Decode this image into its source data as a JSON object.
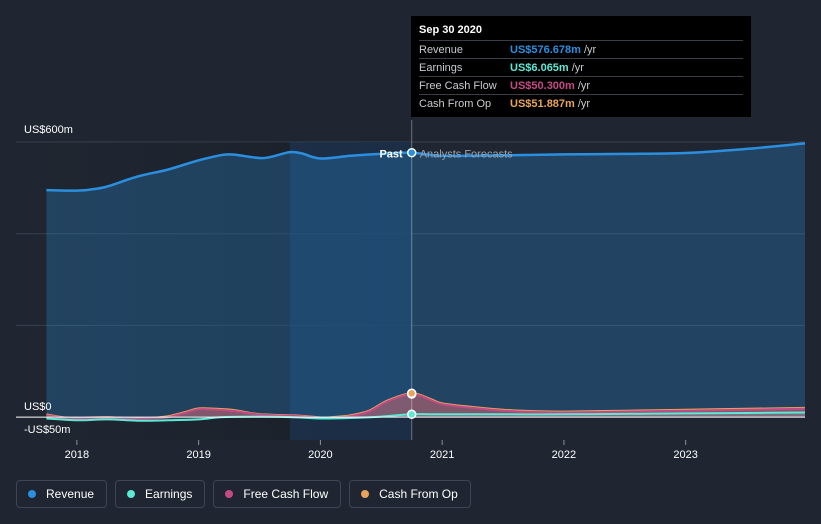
{
  "chart_data": {
    "type": "area",
    "y_axis": {
      "labels": [
        "US$600m",
        "US$0",
        "-US$50m"
      ],
      "ylim": [
        -50,
        600
      ]
    },
    "x_axis": {
      "tick_labels": [
        "2018",
        "2019",
        "2020",
        "2021",
        "2022",
        "2023"
      ],
      "xlim": [
        2017.5,
        2023.98
      ]
    },
    "past_label": "Past",
    "forecast_label": "Analysts Forecasts",
    "divider_x": 2020.75,
    "series": [
      {
        "name": "Revenue",
        "color": "#2b8fe0",
        "x": [
          2017.75,
          2017.9,
          2018.0,
          2018.1,
          2018.25,
          2018.5,
          2018.75,
          2019.0,
          2019.2,
          2019.3,
          2019.5,
          2019.6,
          2019.75,
          2019.85,
          2020.0,
          2020.25,
          2020.5,
          2020.75,
          2021.0,
          2021.5,
          2022.0,
          2022.5,
          2023.0,
          2023.5,
          2023.98
        ],
        "values": [
          495,
          494,
          494,
          496,
          503,
          525,
          540,
          560,
          572,
          572,
          565,
          568,
          578,
          575,
          564,
          570,
          574,
          576.678,
          570,
          571,
          573,
          574,
          576,
          585,
          597
        ]
      },
      {
        "name": "Earnings",
        "color": "#5ee8d6",
        "x": [
          2017.75,
          2018.0,
          2018.25,
          2018.5,
          2018.75,
          2019.0,
          2019.2,
          2019.5,
          2019.75,
          2020.0,
          2020.25,
          2020.5,
          2020.75,
          2021.0,
          2021.5,
          2022.0,
          2022.5,
          2023.0,
          2023.5,
          2023.98
        ],
        "values": [
          -3,
          -7,
          -5,
          -8,
          -7,
          -5,
          0,
          1,
          0,
          -3,
          -2,
          1,
          6.065,
          6,
          6,
          6,
          7,
          8,
          9,
          10
        ]
      },
      {
        "name": "Free Cash Flow",
        "color": "#c44a86",
        "x": [
          2017.75,
          2017.9,
          2018.0,
          2018.1,
          2018.25,
          2018.4,
          2018.5,
          2018.6,
          2018.75,
          2018.9,
          2019.0,
          2019.15,
          2019.3,
          2019.45,
          2019.6,
          2019.75,
          2019.9,
          2020.0,
          2020.1,
          2020.25,
          2020.4,
          2020.55,
          2020.75,
          2020.9,
          2021.0,
          2021.25,
          2021.5,
          2021.75,
          2022.0,
          2022.5,
          2023.0,
          2023.5,
          2023.98
        ],
        "values": [
          4,
          -2,
          -4,
          -2,
          -1,
          -3,
          -4,
          -3,
          0,
          10,
          17,
          16,
          13,
          7,
          4,
          3,
          1,
          -1,
          -1,
          2,
          12,
          34,
          50.3,
          38,
          28,
          20,
          14,
          11,
          10,
          12,
          14,
          16,
          18
        ]
      },
      {
        "name": "Cash From Op",
        "color": "#e8a55a",
        "x": [
          2017.75,
          2017.9,
          2018.0,
          2018.1,
          2018.25,
          2018.4,
          2018.5,
          2018.6,
          2018.75,
          2018.9,
          2019.0,
          2019.15,
          2019.3,
          2019.45,
          2019.6,
          2019.75,
          2019.9,
          2020.0,
          2020.1,
          2020.25,
          2020.4,
          2020.55,
          2020.75,
          2020.9,
          2021.0,
          2021.25,
          2021.5,
          2021.75,
          2022.0,
          2022.5,
          2023.0,
          2023.5,
          2023.98
        ],
        "values": [
          6,
          -1,
          -3,
          -1,
          0,
          -2,
          -3,
          -2,
          2,
          12,
          19,
          18,
          15,
          8,
          5,
          4,
          2,
          -1,
          0,
          4,
          14,
          36,
          51.887,
          40,
          30,
          22,
          16,
          13,
          12,
          14,
          16,
          18,
          20
        ]
      }
    ]
  },
  "tooltip": {
    "date": "Sep 30 2020",
    "rows": [
      {
        "label": "Revenue",
        "value": "US$576.678m",
        "unit": "/yr",
        "color": "#2b8fe0"
      },
      {
        "label": "Earnings",
        "value": "US$6.065m",
        "unit": "/yr",
        "color": "#5ee8d6"
      },
      {
        "label": "Free Cash Flow",
        "value": "US$50.300m",
        "unit": "/yr",
        "color": "#c44a86"
      },
      {
        "label": "Cash From Op",
        "value": "US$51.887m",
        "unit": "/yr",
        "color": "#e8a55a"
      }
    ]
  },
  "legend": [
    {
      "label": "Revenue",
      "color": "#2b8fe0"
    },
    {
      "label": "Earnings",
      "color": "#5ee8d6"
    },
    {
      "label": "Free Cash Flow",
      "color": "#c44a86"
    },
    {
      "label": "Cash From Op",
      "color": "#e8a55a"
    }
  ]
}
